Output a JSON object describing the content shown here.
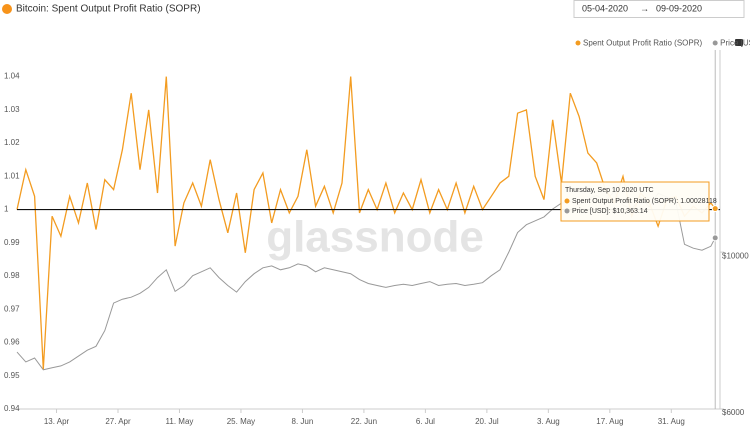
{
  "header": {
    "title": "Bitcoin: Spent Output Profit Ratio (SOPR)",
    "date_from": "05-04-2020",
    "date_to": "09-09-2020"
  },
  "chart_data": {
    "type": "line",
    "watermark": "glassnode",
    "x": [
      "2020-04-04",
      "2020-04-06",
      "2020-04-08",
      "2020-04-10",
      "2020-04-12",
      "2020-04-14",
      "2020-04-16",
      "2020-04-18",
      "2020-04-20",
      "2020-04-22",
      "2020-04-24",
      "2020-04-26",
      "2020-04-28",
      "2020-04-30",
      "2020-05-02",
      "2020-05-04",
      "2020-05-06",
      "2020-05-08",
      "2020-05-10",
      "2020-05-12",
      "2020-05-14",
      "2020-05-16",
      "2020-05-18",
      "2020-05-20",
      "2020-05-22",
      "2020-05-24",
      "2020-05-26",
      "2020-05-28",
      "2020-05-30",
      "2020-06-01",
      "2020-06-03",
      "2020-06-05",
      "2020-06-07",
      "2020-06-09",
      "2020-06-11",
      "2020-06-13",
      "2020-06-15",
      "2020-06-17",
      "2020-06-19",
      "2020-06-21",
      "2020-06-23",
      "2020-06-25",
      "2020-06-27",
      "2020-06-29",
      "2020-07-01",
      "2020-07-03",
      "2020-07-05",
      "2020-07-07",
      "2020-07-09",
      "2020-07-11",
      "2020-07-13",
      "2020-07-15",
      "2020-07-17",
      "2020-07-19",
      "2020-07-21",
      "2020-07-23",
      "2020-07-25",
      "2020-07-27",
      "2020-07-29",
      "2020-07-31",
      "2020-08-02",
      "2020-08-04",
      "2020-08-06",
      "2020-08-08",
      "2020-08-10",
      "2020-08-12",
      "2020-08-14",
      "2020-08-16",
      "2020-08-18",
      "2020-08-20",
      "2020-08-22",
      "2020-08-24",
      "2020-08-26",
      "2020-08-28",
      "2020-08-30",
      "2020-09-01",
      "2020-09-03",
      "2020-09-05",
      "2020-09-07",
      "2020-09-09",
      "2020-09-10"
    ],
    "xlim": [
      "2020-04-04",
      "2020-09-12"
    ],
    "xticks": [
      {
        "value": "2020-04-13",
        "label": "13. Apr"
      },
      {
        "value": "2020-04-27",
        "label": "27. Apr"
      },
      {
        "value": "2020-05-11",
        "label": "11. May"
      },
      {
        "value": "2020-05-25",
        "label": "25. May"
      },
      {
        "value": "2020-06-08",
        "label": "8. Jun"
      },
      {
        "value": "2020-06-22",
        "label": "22. Jun"
      },
      {
        "value": "2020-07-06",
        "label": "6. Jul"
      },
      {
        "value": "2020-07-20",
        "label": "20. Jul"
      },
      {
        "value": "2020-08-03",
        "label": "3. Aug"
      },
      {
        "value": "2020-08-17",
        "label": "17. Aug"
      },
      {
        "value": "2020-08-31",
        "label": "31. Aug"
      }
    ],
    "ylim": [
      0.94,
      1.045
    ],
    "yticks": [
      0.94,
      0.95,
      0.96,
      0.97,
      0.98,
      0.99,
      1,
      1.01,
      1.02,
      1.03,
      1.04
    ],
    "y2lim": [
      6000,
      14900
    ],
    "y2ticks": [
      {
        "value": 6000,
        "label": "$6000"
      },
      {
        "value": 10000,
        "label": "$10000"
      }
    ],
    "reference_line": 1,
    "series": [
      {
        "name": "Spent Output Profit Ratio (SOPR)",
        "color": "#f39c21",
        "values": [
          1.0,
          1.012,
          1.004,
          0.952,
          0.998,
          0.992,
          1.004,
          0.996,
          1.008,
          0.994,
          1.009,
          1.006,
          1.018,
          1.035,
          1.012,
          1.03,
          1.005,
          1.04,
          0.989,
          1.002,
          1.008,
          1.001,
          1.015,
          1.003,
          0.993,
          1.005,
          0.987,
          1.006,
          1.011,
          0.996,
          1.006,
          0.999,
          1.004,
          1.018,
          1.001,
          1.007,
          0.999,
          1.008,
          1.04,
          0.999,
          1.006,
          1.0,
          1.008,
          0.999,
          1.005,
          1.0,
          1.009,
          0.999,
          1.006,
          1.0,
          1.008,
          0.999,
          1.007,
          1.0,
          1.004,
          1.008,
          1.01,
          1.029,
          1.03,
          1.01,
          1.003,
          1.027,
          1.008,
          1.035,
          1.028,
          1.017,
          1.014,
          1.006,
          1.002,
          1.01,
          0.998,
          1.005,
          1.002,
          0.995,
          1.003,
          1.004,
          0.998,
          1.001,
          0.999,
          1.002,
          1.00028118
        ]
      },
      {
        "name": "Price [USD]",
        "color": "#999999",
        "axis": "y2",
        "values": [
          7450,
          7200,
          7300,
          7000,
          7050,
          7100,
          7200,
          7350,
          7500,
          7600,
          8000,
          8700,
          8800,
          8850,
          8950,
          9100,
          9350,
          9550,
          9000,
          9150,
          9400,
          9500,
          9600,
          9350,
          9150,
          8980,
          9250,
          9450,
          9600,
          9650,
          9550,
          9600,
          9700,
          9650,
          9500,
          9600,
          9550,
          9500,
          9450,
          9300,
          9200,
          9150,
          9100,
          9150,
          9180,
          9150,
          9200,
          9250,
          9150,
          9180,
          9200,
          9150,
          9180,
          9220,
          9400,
          9550,
          10000,
          10500,
          10700,
          10800,
          10900,
          11100,
          11250,
          11300,
          11200,
          11350,
          11450,
          11300,
          11550,
          11200,
          11100,
          11400,
          11150,
          11500,
          11400,
          11300,
          10200,
          10100,
          10050,
          10150,
          10363.14
        ]
      }
    ],
    "tooltip": {
      "date": "Thursday, Sep 10 2020 UTC",
      "rows": [
        {
          "name": "Spent Output Profit Ratio (SOPR)",
          "value": 1.00028118
        },
        {
          "name": "Price [USD]",
          "value": 10363.14,
          "label": "$10,363.14"
        }
      ]
    }
  }
}
